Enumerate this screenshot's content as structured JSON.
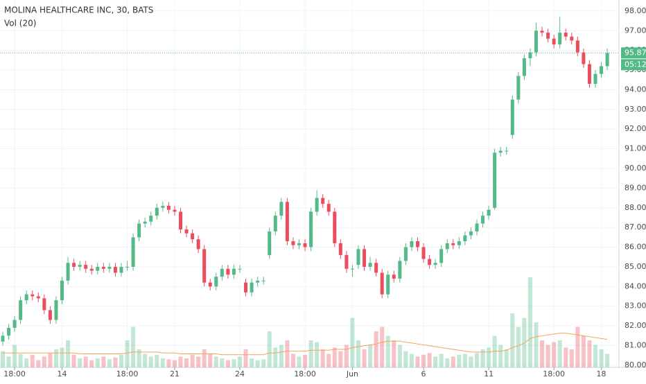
{
  "chart_data": {
    "type": "candlestick",
    "title": "MOLINA HEALTHCARE INC, 30, BATS",
    "indicator": "Vol (20)",
    "up_color": "#53b987",
    "down_color": "#eb4d5c",
    "ma_color": "#f7a35c",
    "grid": true,
    "ylim": [
      79.89,
      98.56
    ],
    "yticks": [
      {
        "value": 80,
        "label": "80.00"
      },
      {
        "value": 81,
        "label": "81.00"
      },
      {
        "value": 82,
        "label": "82.00"
      },
      {
        "value": 83,
        "label": "83.00"
      },
      {
        "value": 84,
        "label": "84.00"
      },
      {
        "value": 85,
        "label": "85.00"
      },
      {
        "value": 86,
        "label": "86.00"
      },
      {
        "value": 87,
        "label": "87.00"
      },
      {
        "value": 88,
        "label": "88.00"
      },
      {
        "value": 89,
        "label": "89.00"
      },
      {
        "value": 90,
        "label": "90.00"
      },
      {
        "value": 91,
        "label": "91.00"
      },
      {
        "value": 92,
        "label": "92.00"
      },
      {
        "value": 93,
        "label": "93.00"
      },
      {
        "value": 94,
        "label": "94.00"
      },
      {
        "value": 95,
        "label": "95.00"
      },
      {
        "value": 96,
        "label": "96.00"
      },
      {
        "value": 97,
        "label": "97.00"
      },
      {
        "value": 98,
        "label": "98.00"
      }
    ],
    "last_price": 95.87,
    "countdown": "05:12",
    "categories": [
      null,
      null,
      "18:00",
      null,
      null,
      null,
      null,
      null,
      null,
      null,
      "14",
      null,
      null,
      null,
      null,
      null,
      null,
      null,
      null,
      null,
      null,
      "18:00",
      null,
      null,
      null,
      null,
      null,
      null,
      null,
      "21",
      null,
      null,
      null,
      null,
      null,
      null,
      null,
      null,
      null,
      null,
      "24",
      null,
      null,
      null,
      null,
      null,
      null,
      null,
      null,
      null,
      null,
      "18:00",
      null,
      null,
      null,
      null,
      null,
      null,
      null,
      "Jun",
      null,
      null,
      null,
      null,
      null,
      null,
      null,
      null,
      null,
      null,
      null,
      "6",
      null,
      null,
      null,
      null,
      null,
      null,
      null,
      null,
      null,
      null,
      "11",
      null,
      null,
      null,
      null,
      null,
      null,
      null,
      null,
      null,
      null,
      "18:00",
      null,
      null,
      null,
      null,
      null,
      null,
      null,
      "18",
      null
    ],
    "ohlc": [
      [
        81.2,
        81.7,
        81.0,
        81.5
      ],
      [
        81.5,
        82.1,
        81.3,
        81.9
      ],
      [
        81.9,
        82.5,
        81.7,
        82.3
      ],
      [
        82.3,
        83.5,
        82.1,
        83.3
      ],
      [
        83.3,
        83.8,
        83.1,
        83.6
      ],
      [
        83.6,
        83.8,
        83.3,
        83.5
      ],
      [
        83.5,
        83.7,
        83.2,
        83.4
      ],
      [
        83.4,
        83.6,
        82.6,
        82.8
      ],
      [
        82.8,
        83.0,
        82.1,
        82.3
      ],
      [
        82.3,
        83.5,
        82.1,
        83.3
      ],
      [
        83.3,
        84.5,
        83.1,
        84.3
      ],
      [
        84.3,
        85.5,
        84.1,
        85.2
      ],
      [
        85.2,
        85.4,
        84.8,
        85.0
      ],
      [
        85.0,
        85.3,
        84.8,
        85.1
      ],
      [
        85.1,
        85.3,
        84.7,
        84.9
      ],
      [
        84.9,
        85.1,
        84.6,
        84.8
      ],
      [
        84.8,
        85.2,
        84.6,
        85.0
      ],
      [
        85.0,
        85.2,
        84.7,
        84.9
      ],
      [
        84.9,
        85.2,
        84.7,
        85.0
      ],
      [
        85.0,
        85.2,
        84.5,
        84.7
      ],
      [
        84.7,
        85.2,
        84.5,
        85.0
      ],
      [
        85.0,
        85.3,
        84.8,
        85.0
      ],
      [
        85.0,
        86.7,
        84.8,
        86.5
      ],
      [
        86.5,
        87.4,
        86.3,
        87.2
      ],
      [
        87.2,
        87.5,
        87.0,
        87.3
      ],
      [
        87.3,
        87.8,
        87.1,
        87.6
      ],
      [
        87.6,
        88.2,
        87.4,
        88.0
      ],
      [
        88.0,
        88.3,
        87.8,
        88.1
      ],
      [
        88.1,
        88.3,
        87.7,
        87.9
      ],
      [
        87.9,
        88.1,
        87.6,
        87.8
      ],
      [
        87.8,
        88.0,
        86.7,
        86.9
      ],
      [
        86.9,
        87.1,
        86.5,
        86.7
      ],
      [
        86.7,
        86.9,
        86.2,
        86.4
      ],
      [
        86.4,
        86.6,
        85.7,
        85.9
      ],
      [
        85.9,
        86.1,
        84.0,
        84.2
      ],
      [
        84.2,
        84.4,
        83.8,
        84.0
      ],
      [
        84.0,
        84.7,
        83.8,
        84.5
      ],
      [
        84.5,
        85.1,
        84.3,
        84.9
      ],
      [
        84.9,
        85.1,
        84.4,
        84.6
      ],
      [
        84.6,
        85.1,
        84.4,
        84.9
      ],
      [
        84.9,
        85.1,
        84.7,
        84.9
      ],
      [
        84.2,
        84.4,
        83.5,
        83.7
      ],
      [
        83.7,
        84.4,
        83.5,
        84.2
      ],
      [
        84.2,
        84.5,
        84.0,
        84.3
      ],
      [
        84.3,
        84.5,
        84.1,
        84.3
      ],
      [
        85.6,
        87.0,
        85.4,
        86.8
      ],
      [
        86.8,
        87.8,
        86.6,
        87.6
      ],
      [
        87.6,
        88.5,
        87.4,
        88.3
      ],
      [
        88.3,
        88.5,
        86.1,
        86.3
      ],
      [
        86.3,
        86.5,
        85.9,
        86.1
      ],
      [
        86.1,
        86.4,
        85.9,
        86.2
      ],
      [
        86.2,
        86.4,
        85.8,
        86.0
      ],
      [
        86.0,
        88.0,
        85.8,
        87.8
      ],
      [
        87.8,
        88.9,
        87.6,
        88.5
      ],
      [
        88.5,
        88.7,
        88.0,
        88.2
      ],
      [
        88.2,
        88.4,
        87.6,
        87.8
      ],
      [
        87.8,
        88.0,
        86.0,
        86.2
      ],
      [
        86.2,
        86.4,
        85.4,
        85.6
      ],
      [
        85.6,
        85.8,
        84.7,
        84.9
      ],
      [
        84.9,
        85.1,
        84.5,
        84.9
      ],
      [
        85.1,
        86.1,
        84.9,
        85.9
      ],
      [
        85.9,
        86.1,
        84.8,
        85.0
      ],
      [
        85.0,
        85.5,
        84.8,
        85.2
      ],
      [
        85.2,
        85.4,
        84.5,
        84.7
      ],
      [
        84.7,
        84.9,
        83.4,
        83.6
      ],
      [
        83.6,
        84.8,
        83.4,
        84.6
      ],
      [
        84.6,
        84.8,
        84.2,
        84.4
      ],
      [
        84.4,
        85.5,
        84.2,
        85.3
      ],
      [
        85.3,
        86.2,
        85.1,
        86.0
      ],
      [
        86.0,
        86.5,
        85.8,
        86.3
      ],
      [
        86.3,
        86.5,
        85.8,
        86.0
      ],
      [
        86.0,
        86.2,
        85.2,
        85.4
      ],
      [
        85.4,
        85.6,
        84.9,
        85.1
      ],
      [
        85.1,
        85.4,
        84.9,
        85.2
      ],
      [
        85.2,
        86.1,
        85.0,
        85.9
      ],
      [
        85.9,
        86.4,
        85.7,
        86.2
      ],
      [
        86.2,
        86.4,
        85.9,
        86.1
      ],
      [
        86.1,
        86.5,
        85.9,
        86.3
      ],
      [
        86.3,
        86.8,
        86.1,
        86.6
      ],
      [
        86.6,
        87.0,
        86.4,
        86.8
      ],
      [
        86.8,
        87.4,
        86.6,
        87.2
      ],
      [
        87.2,
        87.8,
        87.0,
        87.6
      ],
      [
        87.6,
        88.1,
        87.4,
        87.9
      ],
      [
        88.0,
        91.0,
        87.9,
        90.8
      ],
      [
        90.8,
        91.1,
        90.6,
        90.9
      ],
      [
        90.9,
        91.1,
        90.7,
        90.9
      ],
      [
        91.7,
        93.7,
        91.5,
        93.5
      ],
      [
        93.5,
        94.9,
        93.3,
        94.7
      ],
      [
        94.7,
        95.8,
        94.5,
        95.6
      ],
      [
        95.6,
        96.1,
        95.2,
        95.9
      ],
      [
        95.9,
        97.4,
        95.7,
        97.0
      ],
      [
        97.0,
        97.2,
        96.7,
        96.9
      ],
      [
        96.9,
        97.1,
        96.4,
        96.6
      ],
      [
        96.6,
        96.8,
        96.1,
        96.3
      ],
      [
        96.3,
        97.7,
        96.1,
        96.9
      ],
      [
        96.9,
        97.1,
        96.5,
        96.7
      ],
      [
        96.7,
        96.9,
        96.3,
        96.5
      ],
      [
        96.5,
        96.7,
        95.7,
        95.9
      ],
      [
        95.9,
        96.1,
        95.1,
        95.3
      ],
      [
        95.3,
        95.5,
        94.1,
        94.3
      ],
      [
        94.3,
        95.0,
        94.1,
        94.8
      ],
      [
        94.8,
        95.4,
        94.6,
        95.2
      ],
      [
        95.2,
        96.1,
        95.0,
        95.87
      ]
    ],
    "volume_ylim": [
      0,
      100
    ],
    "volume": [
      18,
      12,
      25,
      15,
      10,
      14,
      8,
      12,
      16,
      20,
      22,
      30,
      14,
      10,
      12,
      8,
      10,
      12,
      9,
      11,
      14,
      30,
      45,
      20,
      15,
      12,
      14,
      10,
      9,
      8,
      12,
      10,
      14,
      12,
      20,
      15,
      12,
      10,
      8,
      9,
      12,
      20,
      10,
      8,
      9,
      40,
      22,
      25,
      30,
      15,
      12,
      14,
      30,
      28,
      20,
      15,
      22,
      18,
      25,
      55,
      30,
      20,
      25,
      40,
      45,
      35,
      30,
      25,
      18,
      15,
      12,
      14,
      16,
      12,
      15,
      10,
      12,
      14,
      15,
      12,
      16,
      20,
      22,
      35,
      25,
      20,
      60,
      45,
      55,
      100,
      50,
      30,
      25,
      28,
      30,
      22,
      20,
      45,
      35,
      30,
      25,
      20,
      15
    ],
    "volume_ma": [
      16,
      16,
      16,
      16,
      16,
      16,
      16,
      16,
      16,
      16,
      16,
      16,
      16,
      15,
      15,
      15,
      15,
      15,
      15,
      15,
      15,
      16,
      17,
      17,
      17,
      17,
      17,
      16,
      16,
      16,
      15,
      15,
      15,
      15,
      15,
      15,
      15,
      14,
      14,
      14,
      14,
      14,
      14,
      14,
      14,
      16,
      16,
      17,
      18,
      18,
      18,
      18,
      19,
      19,
      19,
      19,
      20,
      20,
      20,
      22,
      23,
      24,
      25,
      26,
      28,
      29,
      29,
      29,
      28,
      27,
      26,
      25,
      24,
      23,
      22,
      21,
      20,
      19,
      18,
      17,
      17,
      17,
      17,
      18,
      18,
      19,
      22,
      24,
      27,
      32,
      34,
      35,
      36,
      37,
      38,
      38,
      37,
      36,
      35,
      34,
      33,
      32,
      31
    ]
  }
}
